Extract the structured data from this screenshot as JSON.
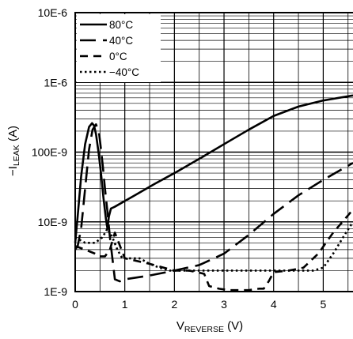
{
  "chart_data": {
    "type": "line",
    "xlabel": {
      "main": "V",
      "subscript": "REVERSE",
      "unit": " (V)"
    },
    "ylabel": {
      "prefix": "−I",
      "subscript": "LEAK",
      "unit": " (A)"
    },
    "x_ticks": [
      "0",
      "1",
      "2",
      "3",
      "4",
      "5"
    ],
    "y_ticks": [
      "1E-9",
      "10E-9",
      "100E-9",
      "1E-6",
      "10E-6"
    ],
    "xlim": [
      0,
      5.6
    ],
    "ylim": [
      1e-09,
      1e-05
    ],
    "yscale": "log",
    "grid": true,
    "legend_position": "top-left",
    "series": [
      {
        "name": "80°C",
        "dash": "solid",
        "x": [
          0.0,
          0.05,
          0.12,
          0.2,
          0.28,
          0.34,
          0.38,
          0.42,
          0.47,
          0.52,
          0.57,
          0.62,
          0.65,
          0.68,
          0.72,
          0.76,
          0.8,
          1.2,
          1.6,
          2.0,
          2.5,
          3.0,
          3.5,
          4.0,
          4.5,
          5.0,
          5.6
        ],
        "y": [
          5e-09,
          1.2e-08,
          4.5e-08,
          1.3e-07,
          2.3e-07,
          2.6e-07,
          2.4e-07,
          1.8e-07,
          1e-07,
          5e-08,
          2.2e-08,
          1.1e-08,
          8e-09,
          1.2e-08,
          1.55e-08,
          1.6e-08,
          1.65e-08,
          2.4e-08,
          3.5e-08,
          5e-08,
          8e-08,
          1.3e-07,
          2.1e-07,
          3.3e-07,
          4.5e-07,
          5.5e-07,
          6.5e-07
        ]
      },
      {
        "name": "40°C",
        "dash": "long-dash",
        "x": [
          0.0,
          0.05,
          0.12,
          0.2,
          0.28,
          0.35,
          0.42,
          0.48,
          0.52,
          0.56,
          0.6,
          0.65,
          0.7,
          0.75,
          0.8,
          0.9,
          1.0,
          1.5,
          2.0,
          2.5,
          3.0,
          3.5,
          4.0,
          4.5,
          5.0,
          5.6
        ],
        "y": [
          4e-09,
          4.5e-09,
          8e-09,
          3e-08,
          1.1e-07,
          2.1e-07,
          2.5e-07,
          1.9e-07,
          1.1e-07,
          6e-08,
          3e-08,
          1.4e-08,
          6e-09,
          3e-09,
          1.5e-09,
          1.4e-09,
          1.5e-09,
          1.7e-09,
          2e-09,
          2.4e-09,
          3.5e-09,
          6.5e-09,
          1.3e-08,
          2.4e-08,
          4e-08,
          7e-08
        ]
      },
      {
        "name": "0°C",
        "dash": "dash",
        "x": [
          0.0,
          0.2,
          0.4,
          0.5,
          0.6,
          0.7,
          0.8,
          1.0,
          1.5,
          2.0,
          2.3,
          2.6,
          2.7,
          2.9,
          3.1,
          3.3,
          3.5,
          3.7,
          3.8,
          3.9,
          4.0,
          4.3,
          4.6,
          4.9,
          5.2,
          5.6
        ],
        "y": [
          4.5e-09,
          4e-09,
          3.5e-09,
          3.2e-09,
          3.2e-09,
          4e-09,
          7e-09,
          3e-09,
          2.5e-09,
          2e-09,
          2e-09,
          1.8e-09,
          1.2e-09,
          1.1e-09,
          1.05e-09,
          1.05e-09,
          1.05e-09,
          1.1e-09,
          1.1e-09,
          1.4e-09,
          1.9e-09,
          2e-09,
          2.2e-09,
          3.5e-09,
          7e-09,
          1.5e-08
        ]
      },
      {
        "name": "−40°C",
        "dash": "dot",
        "x": [
          0.0,
          0.2,
          0.4,
          0.55,
          0.65,
          0.75,
          0.85,
          0.95,
          1.1,
          1.3,
          1.5,
          1.7,
          1.9,
          2.1,
          2.3,
          2.5,
          2.7,
          2.9,
          3.1,
          3.3,
          3.6,
          3.9,
          4.2,
          4.5,
          4.8,
          5.0,
          5.2,
          5.4,
          5.6
        ],
        "y": [
          6e-09,
          5e-09,
          5e-09,
          6e-09,
          8e-09,
          6e-09,
          4e-09,
          3e-09,
          3e-09,
          3e-09,
          2.5e-09,
          2.2e-09,
          2e-09,
          2e-09,
          2e-09,
          2e-09,
          2e-09,
          2e-09,
          2e-09,
          2e-09,
          2e-09,
          2e-09,
          2e-09,
          2e-09,
          2e-09,
          2.2e-09,
          3.5e-09,
          6e-09,
          1e-08
        ]
      }
    ]
  }
}
